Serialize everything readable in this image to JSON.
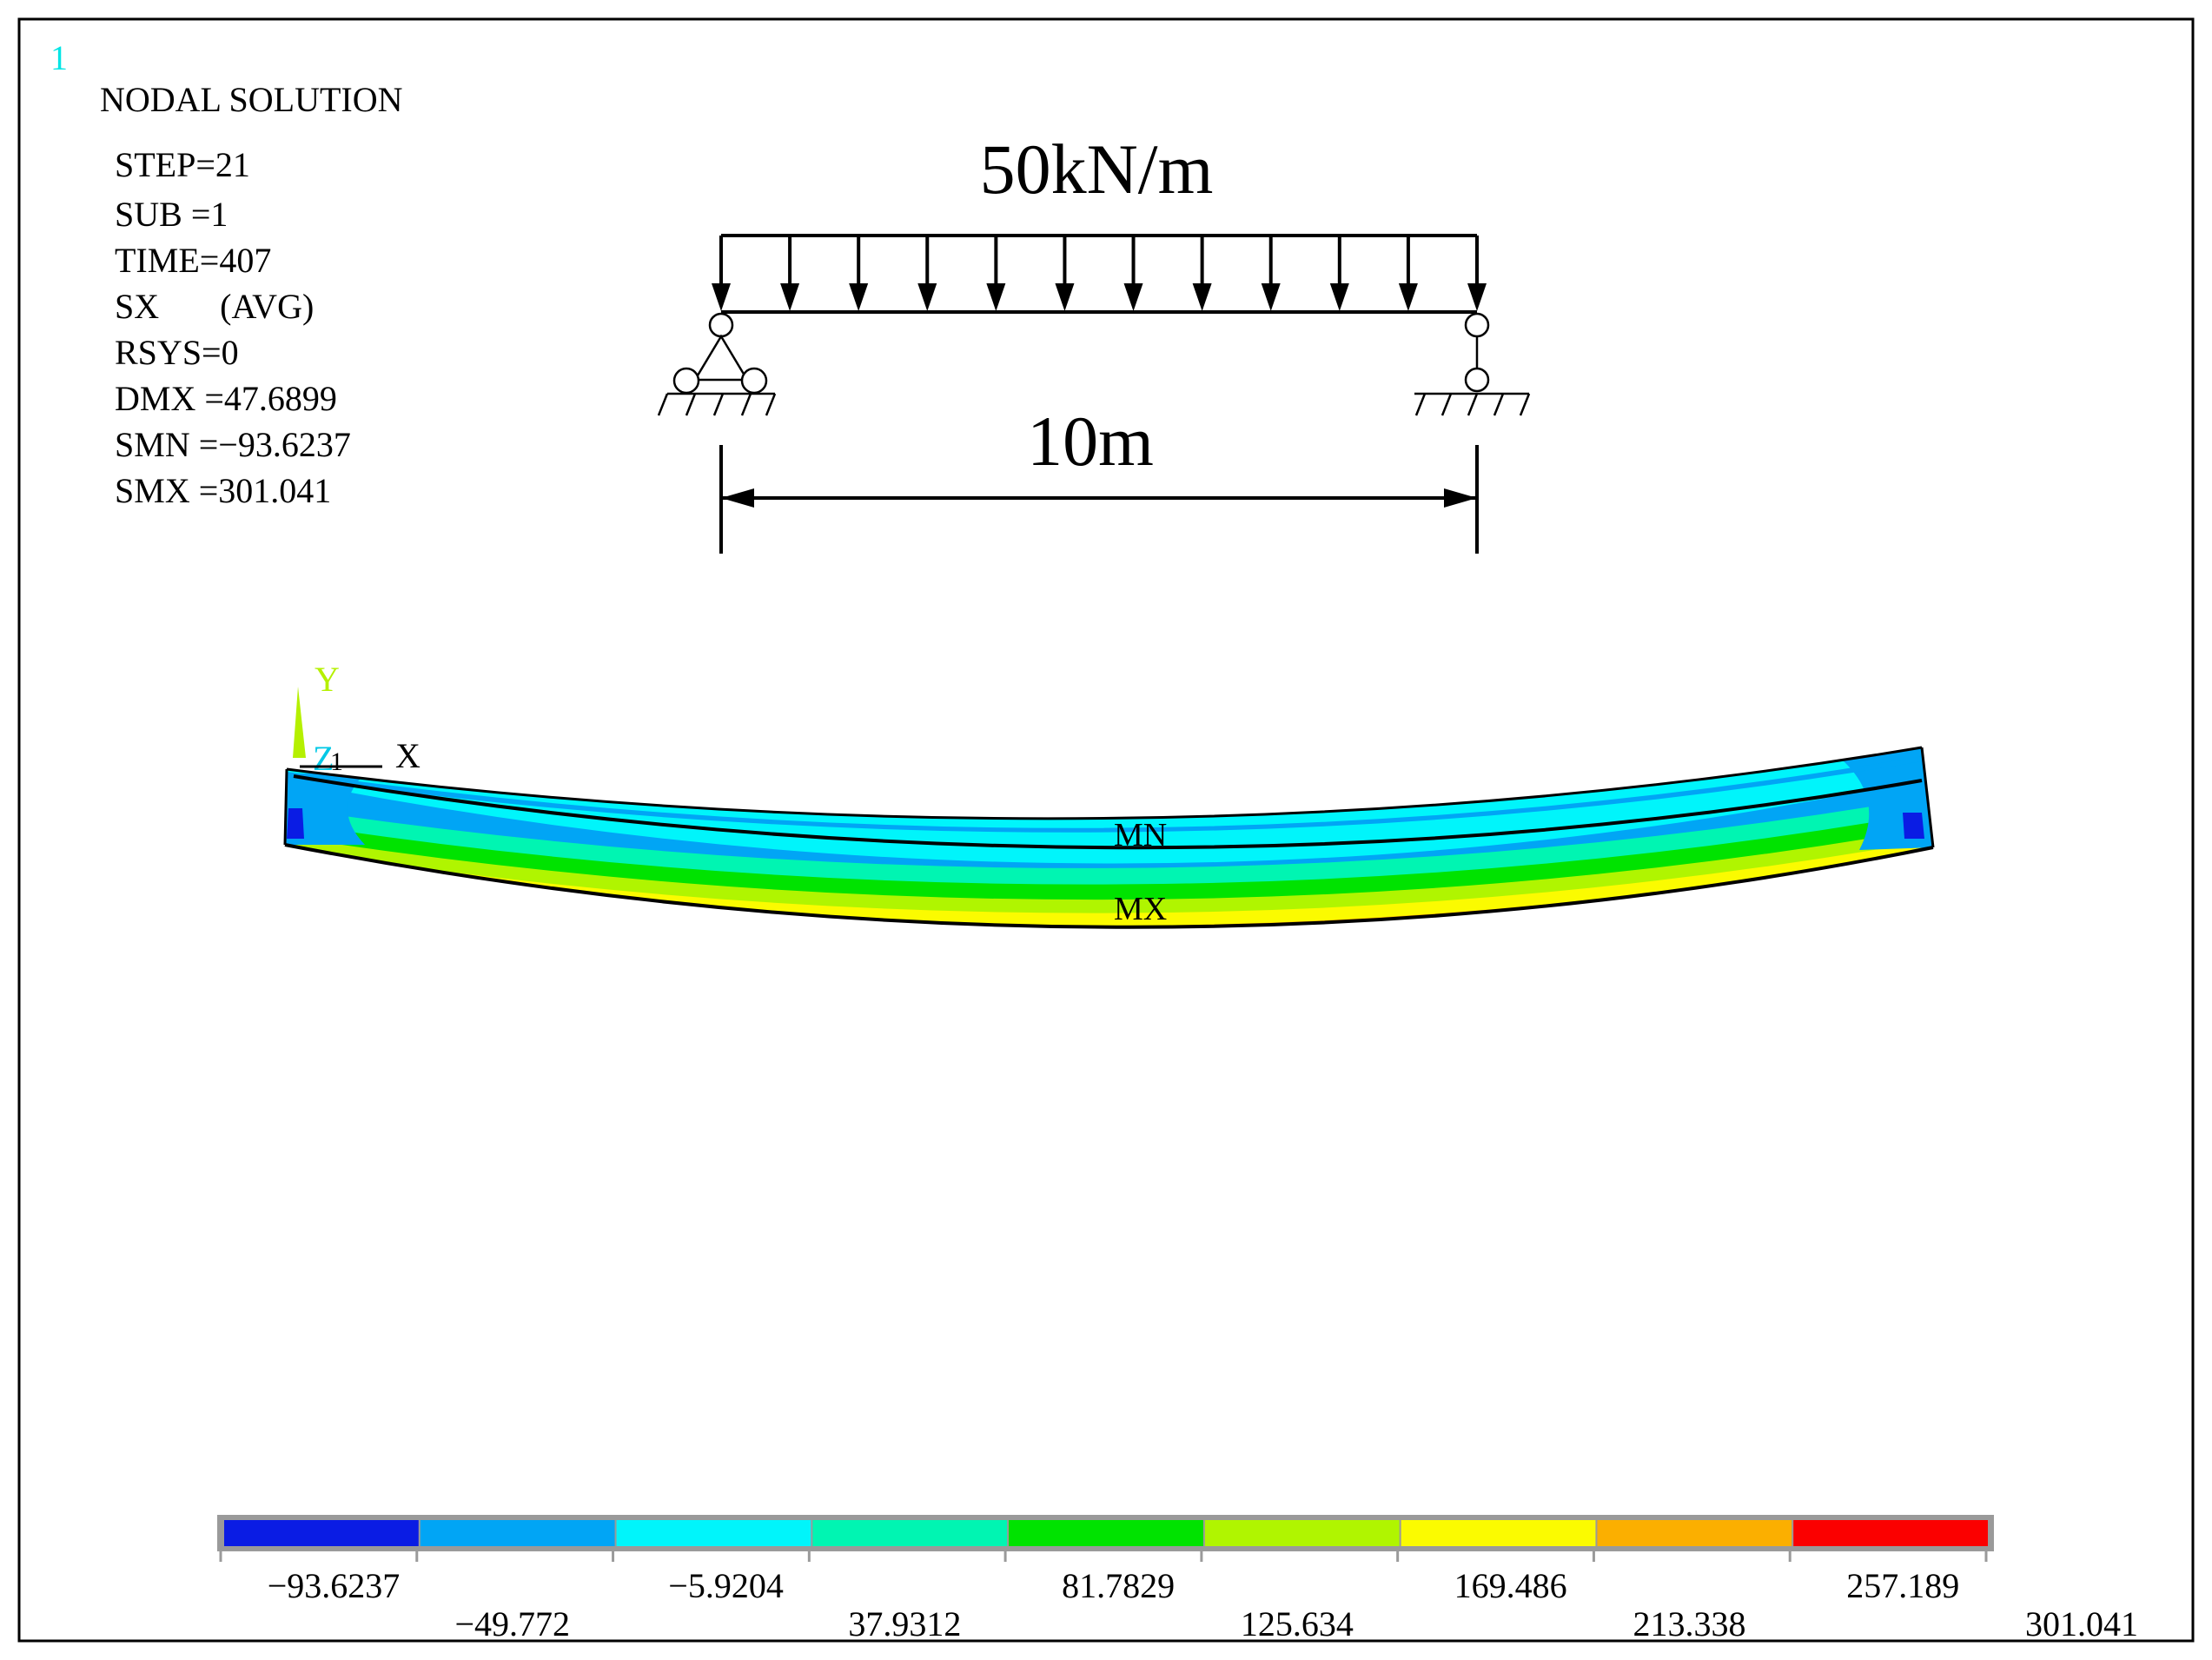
{
  "window_number": "1",
  "info": {
    "title": "NODAL SOLUTION",
    "lines": [
      "STEP=21",
      "SUB =1",
      "TIME=407",
      "SX       (AVG)",
      "RSYS=0",
      "DMX =47.6899",
      "SMN =−93.6237",
      "SMX =301.041"
    ]
  },
  "load_diagram": {
    "load_label": "50kN/m",
    "span_label": "10m"
  },
  "axes": {
    "y": "Y",
    "z": "Z",
    "x": "X",
    "node": "1"
  },
  "markers": {
    "min": "MN",
    "max": "MX"
  },
  "legend": {
    "colors": [
      "#0a1ce4",
      "#01a5f5",
      "#00f5fb",
      "#00f5b2",
      "#00e300",
      "#b0f500",
      "#fbfb00",
      "#fbaf00",
      "#fb0000"
    ],
    "values_top": [
      "−93.6237",
      "−5.9204",
      "81.7829",
      "169.486",
      "257.189"
    ],
    "values_bottom": [
      "−49.772",
      "37.9312",
      "125.634",
      "213.338",
      "301.041"
    ]
  },
  "colors": {
    "frame": "#000000",
    "axis_y": "#b5f000",
    "axis_z": "#00c8e6",
    "window_number": "#00e5e5"
  }
}
